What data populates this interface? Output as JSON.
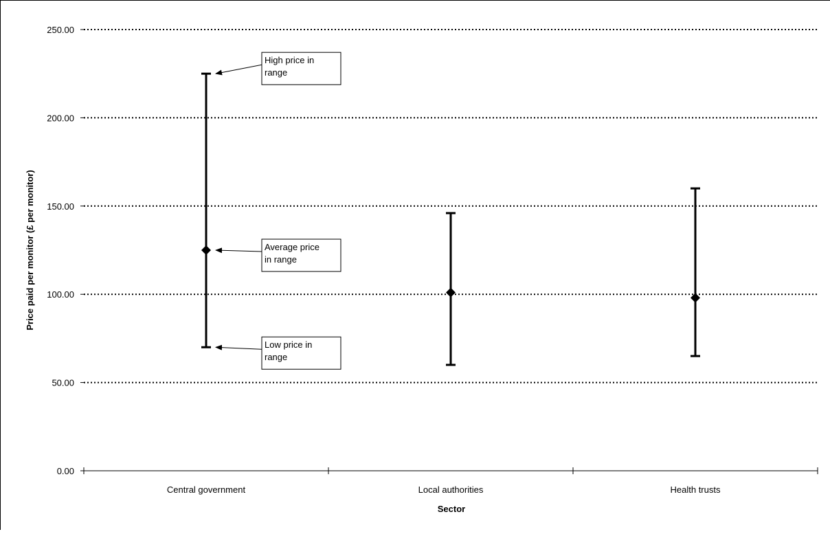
{
  "chart_data": {
    "type": "range",
    "title": "",
    "xlabel": "Sector",
    "ylabel": "Price paid per monitor (£ per monitor)",
    "ylim": [
      0,
      250
    ],
    "yticks": [
      "0.00",
      "50.00",
      "100.00",
      "150.00",
      "200.00",
      "250.00"
    ],
    "grid": "horizontal dotted lines at 50.00, 100.00, 150.00, 200.00, 250.00",
    "categories": [
      "Central government",
      "Local authorities",
      "Health trusts"
    ],
    "series": [
      {
        "name": "High price in range",
        "values": [
          225,
          146,
          160
        ]
      },
      {
        "name": "Average price in range",
        "values": [
          125,
          101,
          98
        ]
      },
      {
        "name": "Low price in range",
        "values": [
          70,
          60,
          65
        ]
      }
    ],
    "annotations": [
      {
        "lines": [
          "High price in",
          "range"
        ],
        "category": "Central government",
        "points_to": 225
      },
      {
        "lines": [
          "Average price",
          "in range"
        ],
        "category": "Central government",
        "points_to": 125
      },
      {
        "lines": [
          "Low price in",
          "range"
        ],
        "category": "Central government",
        "points_to": 70
      }
    ],
    "colors": {
      "marks": "#000000",
      "grid": "#000000"
    }
  }
}
